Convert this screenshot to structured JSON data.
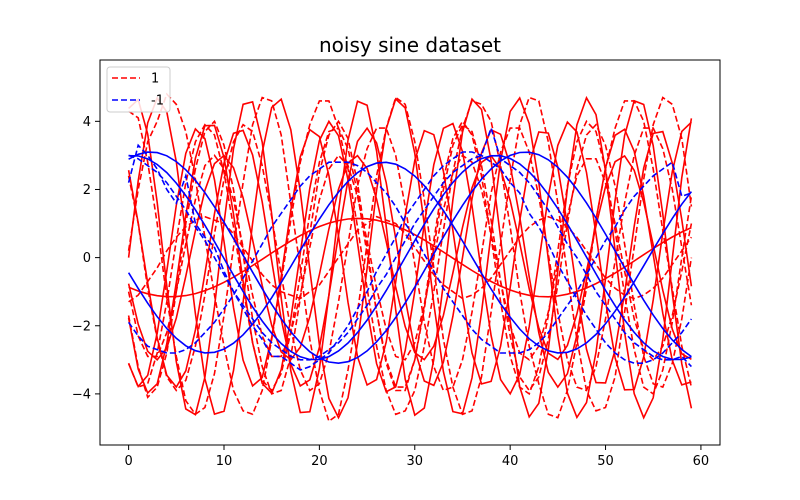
{
  "chart_data": {
    "type": "line",
    "title": "noisy sine dataset",
    "xlabel": "",
    "ylabel": "",
    "xlim": [
      -3,
      62
    ],
    "ylim": [
      -5.5,
      5.8
    ],
    "xticks": [
      0,
      10,
      20,
      30,
      40,
      50,
      60
    ],
    "yticks": [
      -4,
      -2,
      0,
      2,
      4
    ],
    "x": [
      0,
      1,
      2,
      3,
      4,
      5,
      6,
      7,
      8,
      9,
      10,
      11,
      12,
      13,
      14,
      15,
      16,
      17,
      18,
      19,
      20,
      21,
      22,
      23,
      24,
      25,
      26,
      27,
      28,
      29,
      30,
      31,
      32,
      33,
      34,
      35,
      36,
      37,
      38,
      39,
      40,
      41,
      42,
      43,
      44,
      45,
      46,
      47,
      48,
      49,
      50,
      51,
      52,
      53,
      54,
      55,
      56,
      57,
      58,
      59
    ],
    "grid": false,
    "legend": {
      "position": "top-left",
      "entries": [
        {
          "label": "1",
          "color": "#ff0000",
          "style": "dashed"
        },
        {
          "label": "-1",
          "color": "#0000ff",
          "style": "dashed"
        }
      ]
    },
    "colors": {
      "class_pos": "#ff0000",
      "class_neg": "#0000ff"
    },
    "series": [
      {
        "class": "1",
        "smooth": {
          "amp": 4.7,
          "freq": 0.5,
          "phase": 0.0
        },
        "noisy": [
          0.2,
          2.0,
          3.4,
          4.0,
          4.8,
          4.5,
          3.7,
          2.3,
          0.6,
          -1.1,
          -2.6,
          -3.9,
          -4.5,
          -4.6,
          -3.9,
          -2.4,
          -0.7,
          1.1,
          2.8,
          3.9,
          4.6,
          4.6,
          3.8,
          2.6,
          0.9,
          -0.9,
          -2.6,
          -3.9,
          -4.6,
          -4.5,
          -3.9,
          -2.6,
          -1.0,
          0.8,
          2.5,
          3.8,
          4.6,
          4.5,
          4.0,
          2.7,
          0.9,
          -1.0,
          -2.6,
          -3.7,
          -4.6,
          -4.7,
          -3.9,
          -2.5,
          -0.9,
          1.1,
          2.6,
          3.8,
          4.6,
          4.6,
          4.0,
          2.6,
          0.8,
          -0.9,
          -2.6,
          -3.8
        ]
      },
      {
        "class": "1",
        "smooth": {
          "amp": 4.7,
          "freq": 0.53,
          "phase": 1.2
        },
        "noisy": [
          4.3,
          4.1,
          2.8,
          1.0,
          -1.2,
          -2.9,
          -4.2,
          -4.6,
          -4.4,
          -3.4,
          -1.7,
          0.3,
          2.2,
          3.9,
          4.7,
          4.6,
          3.6,
          1.6,
          -0.3,
          -2.4,
          -3.9,
          -4.8,
          -4.6,
          -3.3,
          -1.6,
          0.4,
          2.4,
          3.8,
          4.7,
          4.5,
          3.4,
          1.7,
          -0.3,
          -2.4,
          -3.8,
          -4.6,
          -4.5,
          -3.5,
          -1.6,
          0.4,
          2.3,
          3.9,
          4.7,
          4.6,
          3.4,
          1.6,
          -0.5,
          -2.4,
          -3.9,
          -4.5,
          -4.4,
          -3.5,
          -1.6,
          0.3,
          2.3,
          3.9,
          4.7,
          4.5,
          3.5,
          1.5
        ]
      },
      {
        "class": "1",
        "smooth": {
          "amp": 3.8,
          "freq": 0.47,
          "phase": 2.4
        },
        "noisy": [
          2.4,
          1.0,
          -0.9,
          -2.4,
          -3.5,
          -3.9,
          -3.6,
          -2.6,
          -1.1,
          0.7,
          2.3,
          3.4,
          3.9,
          3.7,
          2.7,
          1.2,
          -0.5,
          -2.1,
          -3.3,
          -3.9,
          -3.7,
          -2.8,
          -1.3,
          0.4,
          2.1,
          3.2,
          3.8,
          3.8,
          3.0,
          1.5,
          -0.2,
          -1.9,
          -3.2,
          -3.9,
          -3.8,
          -3.0,
          -1.6,
          0.1,
          1.9,
          3.1,
          3.8,
          3.8,
          3.1,
          1.8,
          0.1,
          -1.6,
          -3.0,
          -3.8,
          -3.9,
          -3.2,
          -1.8,
          -0.1,
          1.6,
          3.0,
          3.8,
          3.8,
          3.2,
          2.0,
          0.3,
          -1.4
        ]
      },
      {
        "class": "1",
        "smooth": {
          "amp": 3.8,
          "freq": 0.52,
          "phase": 4.1
        },
        "noisy": [
          -3.1,
          -3.8,
          -3.7,
          -2.8,
          -1.3,
          0.5,
          2.2,
          3.4,
          3.9,
          3.6,
          2.5,
          0.9,
          -0.9,
          -2.5,
          -3.6,
          -3.9,
          -3.4,
          -2.2,
          -0.5,
          1.3,
          2.8,
          3.7,
          3.8,
          3.2,
          1.9,
          0.1,
          -1.6,
          -3.0,
          -3.8,
          -3.8,
          -3.0,
          -1.5,
          0.3,
          2.0,
          3.3,
          3.9,
          3.7,
          2.7,
          1.1,
          -0.7,
          -2.3,
          -3.5,
          -3.9,
          -3.5,
          -2.4,
          -0.8,
          1.0,
          2.6,
          3.6,
          3.9,
          3.3,
          2.1,
          0.4,
          -1.4,
          -2.9,
          -3.7,
          -3.8,
          -3.1,
          -1.8,
          0.0
        ]
      },
      {
        "class": "1",
        "smooth": {
          "amp": 3.0,
          "freq": 0.45,
          "phase": 3.4
        },
        "noisy": [
          -1.0,
          -2.3,
          -2.9,
          -2.9,
          -2.2,
          -1.0,
          0.4,
          1.7,
          2.7,
          3.0,
          2.6,
          1.7,
          0.3,
          -1.1,
          -2.3,
          -2.9,
          -2.9,
          -2.2,
          -1.1,
          0.3,
          1.7,
          2.6,
          3.0,
          2.7,
          1.8,
          0.5,
          -0.9,
          -2.1,
          -2.9,
          -3.0,
          -2.5,
          -1.4,
          0.0,
          1.4,
          2.5,
          3.0,
          2.8,
          2.0,
          0.7,
          -0.7,
          -2.0,
          -2.8,
          -3.0,
          -2.6,
          -1.6,
          -0.2,
          1.2,
          2.4,
          2.9,
          2.9,
          2.2,
          1.0,
          -0.4,
          -1.8,
          -2.7,
          -3.0,
          -2.6,
          -1.7,
          -0.4,
          1.0
        ]
      },
      {
        "class": "1",
        "smooth": {
          "amp": 1.15,
          "freq": 0.16,
          "phase": 4.0
        },
        "noisy": [
          -1.3,
          -1.1,
          -0.7,
          -0.3,
          0.2,
          0.6,
          0.9,
          1.1,
          1.2,
          1.1,
          1.0,
          0.7,
          0.3,
          -0.1,
          -0.5,
          -0.8,
          -1.0,
          -1.1,
          -1.2,
          -1.0,
          -0.8,
          -0.4,
          0.0,
          0.4,
          0.8,
          1.0,
          1.2,
          1.1,
          1.0,
          0.7,
          0.3,
          -0.1,
          -0.5,
          -0.8,
          -1.0,
          -1.2,
          -1.1,
          -0.9,
          -0.6,
          -0.2,
          0.2,
          0.6,
          0.9,
          1.1,
          1.2,
          1.1,
          0.9,
          0.6,
          0.2,
          -0.2,
          -0.6,
          -0.9,
          -1.1,
          -1.2,
          -1.1,
          -0.9,
          -0.6,
          -0.2,
          0.2,
          0.6
        ]
      },
      {
        "class": "1",
        "smooth": {
          "amp": 4.0,
          "freq": 0.5,
          "phase": 3.6
        },
        "noisy": [
          -1.7,
          -3.2,
          -4.1,
          -3.8,
          -2.8,
          -1.0,
          1.0,
          2.6,
          3.7,
          4.0,
          3.3,
          2.0,
          0.1,
          -1.8,
          -3.2,
          -4.0,
          -3.9,
          -2.9,
          -1.2,
          0.7,
          2.5,
          3.6,
          4.0,
          3.5,
          2.2,
          0.3,
          -1.6,
          -3.1,
          -3.9,
          -3.9,
          -3.0,
          -1.4,
          0.5,
          2.3,
          3.5,
          4.0,
          3.6,
          2.4,
          0.6,
          -1.3,
          -2.9,
          -3.8,
          -4.0,
          -3.2,
          -1.7,
          0.2,
          2.1,
          3.4,
          4.0,
          3.7,
          2.6,
          0.8,
          -1.1,
          -2.7,
          -3.8,
          -4.0,
          -3.3,
          -1.9,
          0.0,
          1.8
        ]
      },
      {
        "class": "-1",
        "smooth": {
          "amp": 3.1,
          "freq": 0.16,
          "phase": 1.2
        },
        "noisy": [
          2.2,
          3.3,
          3.0,
          2.6,
          2.0,
          1.6,
          2.4,
          1.0,
          0.6,
          0.3,
          -0.4,
          -1.0,
          -1.5,
          -2.0,
          -2.4,
          -2.9,
          -2.9,
          -3.1,
          -3.3,
          -3.2,
          -3.0,
          -2.8,
          -2.4,
          -2.0,
          -1.5,
          -1.0,
          -0.4,
          0.1,
          0.6,
          1.2,
          1.6,
          2.0,
          2.4,
          2.7,
          2.9,
          3.1,
          3.1,
          3.0,
          2.8,
          2.6,
          2.2,
          1.9,
          1.3,
          0.9,
          0.4,
          -0.2,
          -0.7,
          -1.2,
          -1.7,
          -2.1,
          -2.5,
          -2.8,
          -3.0,
          -3.1,
          -3.1,
          -3.0,
          -2.8,
          -2.5,
          -2.2,
          -1.8
        ]
      },
      {
        "class": "-1",
        "smooth": {
          "amp": 2.8,
          "freq": 0.17,
          "phase": 3.3
        },
        "noisy": [
          -1.9,
          -2.3,
          -2.6,
          -2.7,
          -2.8,
          -2.8,
          -2.7,
          -2.5,
          -2.2,
          -1.9,
          -1.5,
          -1.1,
          -0.6,
          -0.1,
          0.4,
          0.9,
          1.3,
          1.7,
          2.1,
          2.4,
          2.6,
          2.8,
          2.8,
          2.8,
          2.7,
          2.5,
          2.2,
          1.9,
          1.5,
          1.0,
          0.6,
          0.1,
          -0.4,
          -0.9,
          -1.3,
          -1.7,
          -2.1,
          -2.4,
          -2.6,
          -2.8,
          -2.8,
          -2.8,
          -2.7,
          -2.5,
          -2.2,
          -1.8,
          -1.4,
          -1.0,
          -0.5,
          0.0,
          0.5,
          0.9,
          1.4,
          1.8,
          2.1,
          2.4,
          2.6,
          2.8,
          1.8,
          1.9
        ]
      },
      {
        "class": "-1",
        "smooth": {
          "amp": 3.0,
          "freq": 0.165,
          "phase": 1.5
        },
        "noisy": [
          3.0,
          2.9,
          2.7,
          2.5,
          2.2,
          1.8,
          1.4,
          0.9,
          0.5,
          0.0,
          -0.5,
          -1.0,
          -1.4,
          -1.8,
          -2.2,
          -2.5,
          -2.7,
          -2.9,
          -3.0,
          -3.0,
          -2.9,
          -2.7,
          -2.5,
          -2.2,
          -1.8,
          -1.4,
          -0.9,
          -0.5,
          0.0,
          0.5,
          1.0,
          1.4,
          1.8,
          2.2,
          2.5,
          2.7,
          2.9,
          3.0,
          3.8,
          2.9,
          2.7,
          2.5,
          2.2,
          1.8,
          1.4,
          0.9,
          0.4,
          0.0,
          -0.5,
          -1.0,
          -1.4,
          -1.8,
          -2.2,
          -2.5,
          -2.7,
          -2.9,
          -3.0,
          -3.0,
          -2.9,
          -3.2
        ]
      }
    ]
  }
}
